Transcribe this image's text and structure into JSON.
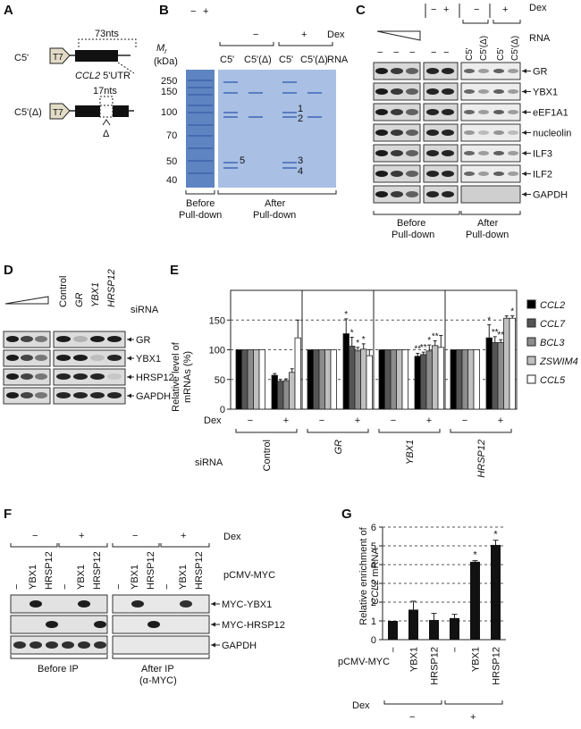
{
  "panels": {
    "A": {
      "label": "A",
      "c5_label": "C5'",
      "c5d_label": "C5'(Δ)",
      "t7": "T7",
      "nts73": "73nts",
      "utr_gene": "CCL2",
      "utr_suffix": " 5'UTR",
      "nts17": "17nts",
      "delta": "Δ"
    },
    "B": {
      "label": "B",
      "dex_label": "Dex",
      "rna_label": "RNA",
      "mr_label": "M",
      "mr_sub": "r",
      "kda_label": "(kDa)",
      "dex_minus": "−",
      "dex_plus": "+",
      "lanes": [
        "C5'",
        "C5'(Δ)",
        "C5'",
        "C5'(Δ)"
      ],
      "markers": [
        "250",
        "150",
        "100",
        "70",
        "50",
        "40"
      ],
      "bands": [
        "1",
        "2",
        "3",
        "4",
        "5"
      ],
      "before": [
        "Before",
        "Pull-down"
      ],
      "after": [
        "After",
        "Pull-down"
      ]
    },
    "C": {
      "label": "C",
      "dex_label": "Dex",
      "rna_label": "RNA",
      "minus": "−",
      "plus": "+",
      "lanes": [
        "C5'",
        "C5'(Δ)",
        "C5'",
        "C5'(Δ)"
      ],
      "proteins": [
        "GR",
        "YBX1",
        "eEF1A1",
        "nucleolin",
        "ILF3",
        "ILF2",
        "GAPDH"
      ],
      "before": [
        "Before",
        "Pull-down"
      ],
      "after": [
        "After",
        "Pull-down"
      ]
    },
    "D": {
      "label": "D",
      "sirna_label": "siRNA",
      "lanes": [
        "Control",
        "GR",
        "YBX1",
        "HRSP12"
      ],
      "proteins": [
        "GR",
        "YBX1",
        "HRSP12",
        "GAPDH"
      ]
    },
    "E": {
      "label": "E",
      "ylabel_1": "Relative  level of",
      "ylabel_2": "mRNAs (%)",
      "dex_label": "Dex",
      "sirna_label": "siRNA",
      "minus": "−",
      "plus": "+",
      "groups": [
        "Control",
        "GR",
        "YBX1",
        "HRSP12"
      ],
      "star": "*",
      "dstar": "**"
    },
    "F": {
      "label": "F",
      "dex_label": "Dex",
      "pcmv_label": "pCMV-MYC",
      "minus": "−",
      "plus": "+",
      "lanes": [
        "−",
        "YBX1",
        "HRSP12"
      ],
      "proteins": [
        "MYC-YBX1",
        "MYC-HRSP12",
        "GAPDH"
      ],
      "before": "Before IP",
      "after_1": "After IP",
      "after_2": "(α-MYC)"
    },
    "G": {
      "label": "G",
      "ylabel_1": "Relative enrichment of",
      "ylabel_gene": "CCL2",
      "ylabel_2": " mRNA",
      "pcmv_label": "pCMV-MYC",
      "dex_label": "Dex",
      "minus": "−",
      "plus": "+",
      "categories": [
        "−",
        "YBX1",
        "HRSP12",
        "−",
        "YBX1",
        "HRSP12"
      ],
      "star": "*"
    }
  },
  "chart_data": [
    {
      "type": "bar",
      "panel": "E",
      "ylabel": "Relative  level of mRNAs (%)",
      "ylim": [
        0,
        200
      ],
      "yticks": [
        0,
        50,
        100,
        150
      ],
      "grid": "dashed horizontal",
      "legend": "right",
      "groups": [
        "Control",
        "GR",
        "YBX1",
        "HRSP12"
      ],
      "dex": [
        "−",
        "+"
      ],
      "series": [
        {
          "name": "CCL2",
          "color": "#000000",
          "values": [
            [
              100,
              57
            ],
            [
              100,
              127
            ],
            [
              100,
              89
            ],
            [
              100,
              120
            ]
          ],
          "errors": [
            [
              0,
              3
            ],
            [
              0,
              25
            ],
            [
              0,
              5
            ],
            [
              0,
              22
            ]
          ]
        },
        {
          "name": "CCL7",
          "color": "#555555",
          "values": [
            [
              100,
              47
            ],
            [
              100,
              106
            ],
            [
              100,
              92
            ],
            [
              100,
              112
            ]
          ],
          "errors": [
            [
              0,
              3
            ],
            [
              0,
              15
            ],
            [
              0,
              4
            ],
            [
              0,
              10
            ]
          ]
        },
        {
          "name": "BCL3",
          "color": "#8c8c8c",
          "values": [
            [
              100,
              48
            ],
            [
              100,
              98
            ],
            [
              100,
              98
            ],
            [
              100,
              112
            ]
          ],
          "errors": [
            [
              0,
              3
            ],
            [
              0,
              6
            ],
            [
              0,
              10
            ],
            [
              0,
              5
            ]
          ]
        },
        {
          "name": "ZSWIM4",
          "color": "#c0c0c0",
          "values": [
            [
              100,
              62
            ],
            [
              100,
              101
            ],
            [
              100,
              107
            ],
            [
              100,
              153
            ]
          ],
          "errors": [
            [
              0,
              6
            ],
            [
              0,
              9
            ],
            [
              0,
              8
            ],
            [
              0,
              4
            ]
          ]
        },
        {
          "name": "CCL5",
          "color": "#ffffff",
          "values": [
            [
              100,
              120
            ],
            [
              100,
              90
            ],
            [
              100,
              104
            ],
            [
              100,
              153
            ]
          ],
          "errors": [
            [
              0,
              30
            ],
            [
              0,
              10
            ],
            [
              0,
              20
            ],
            [
              0,
              4
            ]
          ]
        }
      ]
    },
    {
      "type": "bar",
      "panel": "G",
      "ylabel": "Relative enrichment of CCL2 mRNA",
      "ylim": [
        0,
        6
      ],
      "yticks": [
        0,
        1,
        2,
        3,
        4,
        5,
        6
      ],
      "grid": "dashed horizontal",
      "categories": [
        "−",
        "YBX1",
        "HRSP12",
        "−",
        "YBX1",
        "HRSP12"
      ],
      "dex": [
        "−",
        "−",
        "−",
        "+",
        "+",
        "+"
      ],
      "values": [
        1.0,
        1.6,
        1.05,
        1.15,
        4.15,
        5.05
      ],
      "errors": [
        0,
        0.45,
        0.35,
        0.2,
        0.06,
        0.25
      ]
    }
  ]
}
